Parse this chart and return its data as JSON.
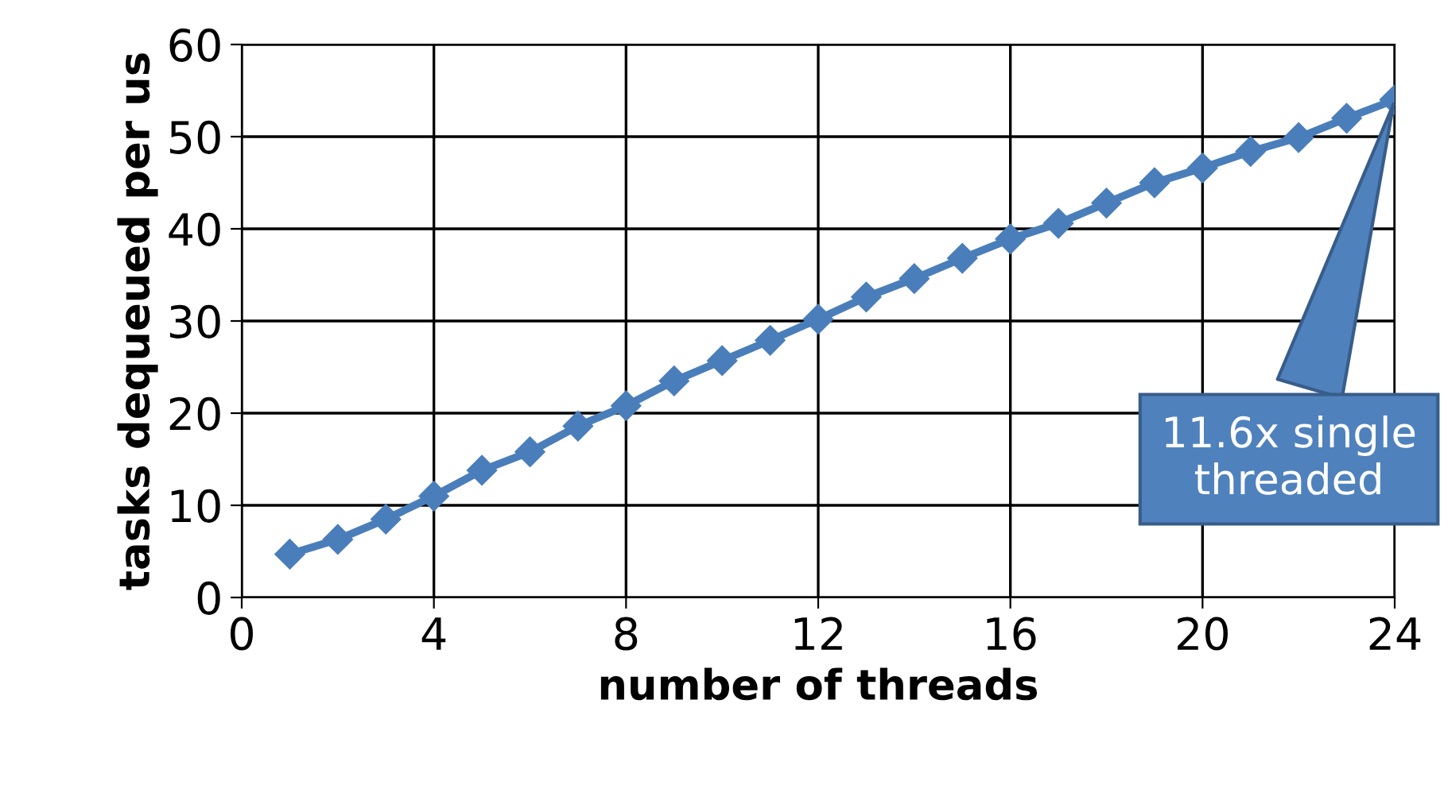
{
  "chart_data": {
    "type": "line",
    "xlabel": "number of threads",
    "ylabel": "tasks dequeued per us",
    "x": [
      1,
      2,
      3,
      4,
      5,
      6,
      7,
      8,
      9,
      10,
      11,
      12,
      13,
      14,
      15,
      16,
      17,
      18,
      19,
      20,
      21,
      22,
      23,
      24
    ],
    "series": [
      {
        "color": "#4a7ebb",
        "values": [
          4.7,
          6.3,
          8.5,
          11.0,
          13.8,
          15.8,
          18.6,
          20.8,
          23.5,
          25.7,
          27.9,
          30.2,
          32.6,
          34.6,
          36.8,
          38.9,
          40.6,
          42.8,
          45.0,
          46.6,
          48.4,
          49.9,
          52.0,
          54.0
        ]
      }
    ],
    "xlim": [
      0,
      24
    ],
    "ylim": [
      0,
      60
    ],
    "xticks": [
      0,
      4,
      8,
      12,
      16,
      20,
      24
    ],
    "yticks": [
      0,
      10,
      20,
      30,
      40,
      50,
      60
    ],
    "grid": true,
    "marker": "diamond",
    "line_style": "solid",
    "legend": false,
    "annotations": [
      {
        "text": "11.6x single\nthreaded",
        "x": 24,
        "y": 54
      }
    ]
  }
}
